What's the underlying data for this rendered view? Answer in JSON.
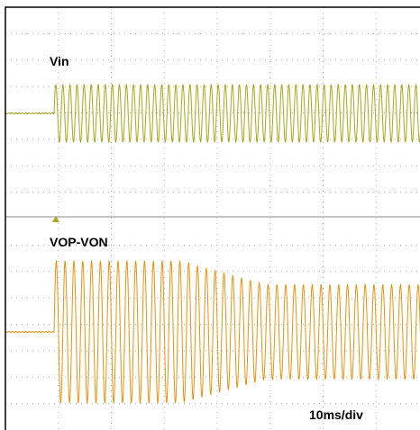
{
  "chart_data": {
    "type": "line",
    "time_base": "10ms/div",
    "grid": true,
    "divisions": {
      "x": 8,
      "y": 16
    },
    "channels": [
      {
        "name": "Vin",
        "color": "#a8a81a",
        "pre_trigger_level": 0,
        "waveform": "sine",
        "cycles_per_div": 7.5,
        "amplitude_div": 1.1,
        "start_div": 1.0
      },
      {
        "name": "VOP-VON",
        "color": "#e8930f",
        "pre_trigger_level": 0,
        "waveform": "sine",
        "cycles_per_div": 6.0,
        "amplitude_start_div": 2.7,
        "amplitude_end_div": 1.8,
        "decay_start_div": 3.4,
        "decay_end_div": 5.0,
        "start_div": 1.0
      }
    ],
    "trigger_marker_color": "#a8a81a"
  }
}
